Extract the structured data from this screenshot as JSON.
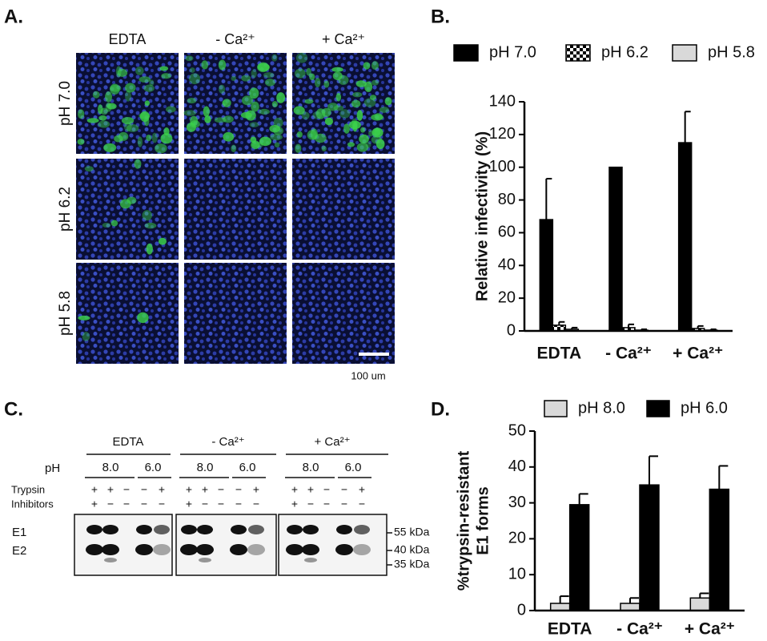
{
  "panels": {
    "labels": [
      "A.",
      "B.",
      "C.",
      "D."
    ]
  },
  "microscopy": {
    "columns": [
      "EDTA",
      "- Ca²⁺",
      "+ Ca²⁺"
    ],
    "rows": [
      "pH 7.0",
      "pH 6.2",
      "pH 5.8"
    ],
    "scale_bar": "100 um"
  },
  "blot": {
    "groups": [
      "EDTA",
      "- Ca²⁺",
      "+ Ca²⁺"
    ],
    "ph_label": "pH",
    "ph_values": [
      "8.0",
      "6.0"
    ],
    "trypsin_label": "Trypsin",
    "inhibitors_label": "Inhibitors",
    "trypsin": [
      "+",
      "+",
      "−",
      "−",
      "+"
    ],
    "inhibitors": [
      "+",
      "−",
      "−",
      "−",
      "−"
    ],
    "bands": [
      "E1",
      "E2"
    ],
    "markers": [
      "55 kDa",
      "40 kDa",
      "35 kDa"
    ]
  },
  "chart_data": [
    {
      "type": "bar",
      "y_label": "Relative infectivity (%)",
      "categories": [
        "EDTA",
        "- Ca²⁺",
        "+ Ca²⁺"
      ],
      "series": [
        {
          "name": "pH 7.0",
          "color": "#000000",
          "values": [
            68,
            100,
            115
          ],
          "errors": [
            25,
            0,
            19
          ]
        },
        {
          "name": "pH 6.2",
          "color": "#000000",
          "pattern": "checker",
          "values": [
            3.5,
            2,
            1.5
          ],
          "errors": [
            2,
            2,
            1.5
          ]
        },
        {
          "name": "pH 5.8",
          "color": "#d9d9d9",
          "values": [
            1,
            0.5,
            0.5
          ],
          "errors": [
            1,
            0.5,
            0.5
          ]
        }
      ],
      "ylim": [
        0,
        140
      ],
      "yticks": [
        0,
        20,
        40,
        60,
        80,
        100,
        120,
        140
      ]
    },
    {
      "type": "bar",
      "y_label": [
        "%trypsin-resistant",
        "E1 forms"
      ],
      "categories": [
        "EDTA",
        "- Ca²⁺",
        "+ Ca²⁺"
      ],
      "series": [
        {
          "name": "pH 8.0",
          "color": "#d9d9d9",
          "values": [
            2,
            2,
            3.5
          ],
          "errors": [
            2,
            1.5,
            1.3
          ]
        },
        {
          "name": "pH 6.0",
          "color": "#000000",
          "values": [
            29.5,
            35,
            33.8
          ],
          "errors": [
            3,
            8,
            6.5
          ]
        }
      ],
      "ylim": [
        0,
        50
      ],
      "yticks": [
        0,
        10,
        20,
        30,
        40,
        50
      ]
    }
  ]
}
